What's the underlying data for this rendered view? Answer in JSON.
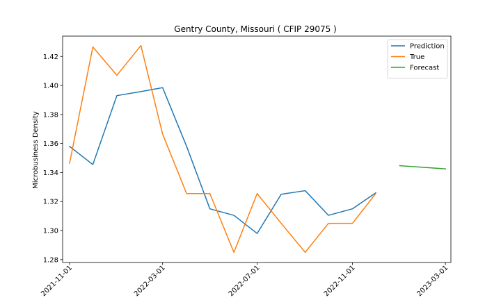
{
  "chart_data": {
    "type": "line",
    "title": "Gentry County, Missouri ( CFIP 29075 )",
    "xlabel": "",
    "ylabel": "Microbusiness Density",
    "x_range": [
      "2021-10-23",
      "2023-03-08"
    ],
    "ylim": [
      1.278,
      1.434
    ],
    "grid": false,
    "legend_position": "top-right",
    "xticks": [
      "2021-11-01",
      "2022-03-01",
      "2022-07-01",
      "2022-11-01",
      "2023-03-01"
    ],
    "yticks": [
      1.28,
      1.3,
      1.32,
      1.34,
      1.36,
      1.38,
      1.4,
      1.42
    ],
    "series": [
      {
        "name": "Prediction",
        "color": "#1f77b4",
        "x": [
          "2021-11-01",
          "2021-12-01",
          "2022-01-01",
          "2022-02-01",
          "2022-03-01",
          "2022-04-01",
          "2022-05-01",
          "2022-06-01",
          "2022-07-01",
          "2022-08-01",
          "2022-09-01",
          "2022-10-01",
          "2022-11-01",
          "2022-12-01"
        ],
        "values": [
          1.358,
          1.3455,
          1.393,
          1.3958,
          1.3985,
          1.358,
          1.315,
          1.3105,
          1.298,
          1.325,
          1.3275,
          1.3105,
          1.315,
          1.326
        ]
      },
      {
        "name": "True",
        "color": "#ff7f0e",
        "x": [
          "2021-11-01",
          "2021-12-01",
          "2022-01-01",
          "2022-02-01",
          "2022-03-01",
          "2022-04-01",
          "2022-05-01",
          "2022-06-01",
          "2022-07-01",
          "2022-08-01",
          "2022-09-01",
          "2022-10-01",
          "2022-11-01",
          "2022-12-01"
        ],
        "values": [
          1.3465,
          1.4265,
          1.407,
          1.4275,
          1.3665,
          1.3255,
          1.3255,
          1.285,
          1.3255,
          1.305,
          1.285,
          1.305,
          1.305,
          1.3255
        ]
      },
      {
        "name": "Forecast",
        "color": "#2ca02c",
        "x": [
          "2023-01-01",
          "2023-03-01"
        ],
        "values": [
          1.3447,
          1.3425
        ]
      }
    ]
  }
}
